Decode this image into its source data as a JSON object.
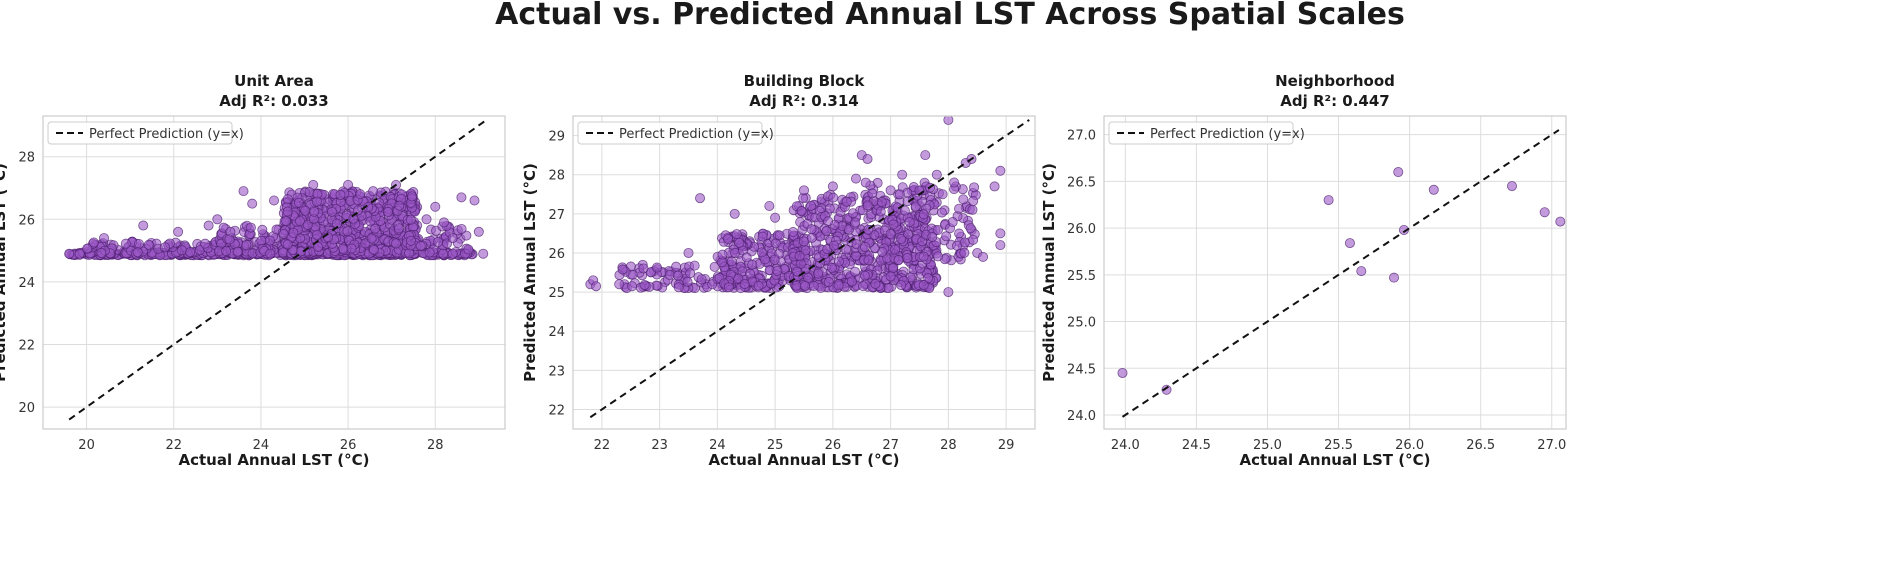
{
  "figure": {
    "title": "Actual vs. Predicted Annual LST Across Spatial Scales"
  },
  "colors": {
    "point_fill": "#9b59c6",
    "point_stroke": "#4a1d6b",
    "grid": "#dddddd",
    "frame": "#cccccc",
    "reference_line": "#111111"
  },
  "chart_data": [
    {
      "type": "scatter",
      "title": "Unit Area",
      "subtitle": "Adj R²: 0.033",
      "xlabel": "Actual Annual LST (°C)",
      "ylabel": "Predicted Annual LST (°C)",
      "xlim": [
        19.0,
        29.6
      ],
      "ylim": [
        19.3,
        29.3
      ],
      "xticks": [
        20,
        22,
        24,
        26,
        28
      ],
      "yticks": [
        20,
        22,
        24,
        26,
        28
      ],
      "xtick_labels": [
        "20",
        "22",
        "24",
        "26",
        "28"
      ],
      "ytick_labels": [
        "20",
        "22",
        "24",
        "26",
        "28"
      ],
      "grid": true,
      "legend": {
        "entries": [
          "Perfect Prediction (y=x)"
        ],
        "position": "upper-left"
      },
      "reference_line": {
        "label": "Perfect Prediction (y=x)",
        "from": 19.6,
        "to": 29.2
      },
      "series": [
        {
          "name": "",
          "clusters": [
            {
              "xmin": 19.6,
              "xmax": 28.9,
              "ymin": 24.85,
              "ymax": 24.95,
              "count": 380
            },
            {
              "xmin": 20.0,
              "xmax": 25.0,
              "ymin": 24.9,
              "ymax": 25.3,
              "count": 160
            },
            {
              "xmin": 23.0,
              "xmax": 25.5,
              "ymin": 24.9,
              "ymax": 25.8,
              "count": 150
            },
            {
              "xmin": 24.5,
              "xmax": 27.6,
              "ymin": 24.9,
              "ymax": 26.9,
              "count": 700
            },
            {
              "xmin": 27.3,
              "xmax": 28.8,
              "ymin": 24.9,
              "ymax": 25.8,
              "count": 60
            }
          ],
          "points": [
            [
              19.6,
              24.9
            ],
            [
              20.4,
              25.4
            ],
            [
              21.3,
              25.8
            ],
            [
              22.1,
              25.6
            ],
            [
              22.8,
              25.8
            ],
            [
              23.0,
              26.0
            ],
            [
              23.6,
              26.9
            ],
            [
              23.8,
              26.5
            ],
            [
              24.3,
              26.6
            ],
            [
              25.2,
              27.1
            ],
            [
              26.0,
              27.1
            ],
            [
              27.1,
              27.1
            ],
            [
              28.0,
              26.4
            ],
            [
              28.2,
              25.9
            ],
            [
              28.6,
              26.7
            ],
            [
              28.9,
              26.6
            ],
            [
              29.0,
              25.6
            ],
            [
              29.1,
              24.9
            ],
            [
              27.8,
              26.0
            ],
            [
              28.4,
              25.4
            ]
          ]
        }
      ]
    },
    {
      "type": "scatter",
      "title": "Building Block",
      "subtitle": "Adj R²: 0.314",
      "xlabel": "Actual Annual LST (°C)",
      "ylabel": "Predicted Annual LST (°C)",
      "xlim": [
        21.5,
        29.5
      ],
      "ylim": [
        21.5,
        29.5
      ],
      "xticks": [
        22,
        23,
        24,
        25,
        26,
        27,
        28,
        29
      ],
      "yticks": [
        22,
        23,
        24,
        25,
        26,
        27,
        28,
        29
      ],
      "xtick_labels": [
        "22",
        "23",
        "24",
        "25",
        "26",
        "27",
        "28",
        "29"
      ],
      "ytick_labels": [
        "22",
        "23",
        "24",
        "25",
        "26",
        "27",
        "28",
        "29"
      ],
      "grid": true,
      "legend": {
        "entries": [
          "Perfect Prediction (y=x)"
        ],
        "position": "upper-left"
      },
      "reference_line": {
        "label": "Perfect Prediction (y=x)",
        "from": 21.8,
        "to": 29.4
      },
      "series": [
        {
          "name": "",
          "clusters": [
            {
              "xmin": 22.3,
              "xmax": 24.5,
              "ymin": 25.1,
              "ymax": 25.7,
              "count": 90
            },
            {
              "xmin": 24.0,
              "xmax": 25.5,
              "ymin": 25.1,
              "ymax": 26.5,
              "count": 230
            },
            {
              "xmin": 25.3,
              "xmax": 27.8,
              "ymin": 25.1,
              "ymax": 27.5,
              "count": 550
            },
            {
              "xmin": 26.5,
              "xmax": 28.5,
              "ymin": 25.8,
              "ymax": 27.8,
              "count": 150
            }
          ],
          "points": [
            [
              21.8,
              25.2
            ],
            [
              21.85,
              25.3
            ],
            [
              21.9,
              25.15
            ],
            [
              22.3,
              25.2
            ],
            [
              23.5,
              26.0
            ],
            [
              23.7,
              27.4
            ],
            [
              24.3,
              27.0
            ],
            [
              24.9,
              27.2
            ],
            [
              25.0,
              26.9
            ],
            [
              25.5,
              27.6
            ],
            [
              26.0,
              27.7
            ],
            [
              26.4,
              27.9
            ],
            [
              26.5,
              28.5
            ],
            [
              26.6,
              28.4
            ],
            [
              27.0,
              27.6
            ],
            [
              27.2,
              28.0
            ],
            [
              27.5,
              27.6
            ],
            [
              27.6,
              28.5
            ],
            [
              27.8,
              28.0
            ],
            [
              27.9,
              27.5
            ],
            [
              28.0,
              29.4
            ],
            [
              28.1,
              27.8
            ],
            [
              28.3,
              28.3
            ],
            [
              28.4,
              28.4
            ],
            [
              28.5,
              26.0
            ],
            [
              28.6,
              25.9
            ],
            [
              28.8,
              27.7
            ],
            [
              28.9,
              28.1
            ],
            [
              28.9,
              26.5
            ],
            [
              28.9,
              26.2
            ],
            [
              28.0,
              25.0
            ],
            [
              27.0,
              25.4
            ]
          ]
        }
      ]
    },
    {
      "type": "scatter",
      "title": "Neighborhood",
      "subtitle": "Adj R²: 0.447",
      "xlabel": "Actual Annual LST (°C)",
      "ylabel": "Predicted Annual LST (°C)",
      "xlim": [
        23.85,
        27.1
      ],
      "ylim": [
        23.85,
        27.2
      ],
      "xticks": [
        24.0,
        24.5,
        25.0,
        25.5,
        26.0,
        26.5,
        27.0
      ],
      "yticks": [
        24.0,
        24.5,
        25.0,
        25.5,
        26.0,
        26.5,
        27.0
      ],
      "xtick_labels": [
        "24.0",
        "24.5",
        "25.0",
        "25.5",
        "26.0",
        "26.5",
        "27.0"
      ],
      "ytick_labels": [
        "24.0",
        "24.5",
        "25.0",
        "25.5",
        "26.0",
        "26.5",
        "27.0"
      ],
      "grid": true,
      "legend": {
        "entries": [
          "Perfect Prediction (y=x)"
        ],
        "position": "upper-left"
      },
      "reference_line": {
        "label": "Perfect Prediction (y=x)",
        "from": 23.98,
        "to": 27.05
      },
      "series": [
        {
          "name": "",
          "points": [
            [
              23.98,
              24.45
            ],
            [
              24.29,
              24.27
            ],
            [
              25.43,
              26.3
            ],
            [
              25.58,
              25.84
            ],
            [
              25.66,
              25.54
            ],
            [
              25.89,
              25.47
            ],
            [
              25.92,
              26.6
            ],
            [
              25.96,
              25.98
            ],
            [
              26.17,
              26.41
            ],
            [
              26.72,
              26.45
            ],
            [
              26.95,
              26.17
            ],
            [
              27.06,
              26.07
            ]
          ]
        }
      ]
    }
  ]
}
